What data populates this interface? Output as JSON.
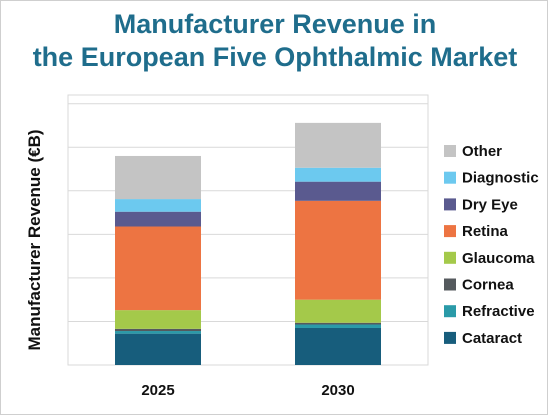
{
  "chart_data": {
    "type": "bar",
    "stacked": true,
    "title_lines": [
      "Manufacturer Revenue in",
      "the European Five Ophthalmic Market"
    ],
    "xlabel": "",
    "ylabel": "Manufacturer Revenue (€B)",
    "categories": [
      "2025",
      "2030"
    ],
    "ylim": [
      0,
      6.2
    ],
    "y_tick_labels_shown": false,
    "grid": true,
    "legend_position": "right",
    "series": [
      {
        "name": "Cataract",
        "color": "#175d7c",
        "values": [
          0.72,
          0.85
        ]
      },
      {
        "name": "Refractive",
        "color": "#2a9aa8",
        "values": [
          0.06,
          0.08
        ]
      },
      {
        "name": "Cornea",
        "color": "#555a5e",
        "values": [
          0.05,
          0.04
        ]
      },
      {
        "name": "Glaucoma",
        "color": "#a4c94a",
        "values": [
          0.43,
          0.53
        ]
      },
      {
        "name": "Retina",
        "color": "#ed7442",
        "values": [
          1.92,
          2.27
        ]
      },
      {
        "name": "Dry Eye",
        "color": "#5a5a8f",
        "values": [
          0.34,
          0.44
        ]
      },
      {
        "name": "Diagnostic",
        "color": "#6cc9ef",
        "values": [
          0.29,
          0.32
        ]
      },
      {
        "name": "Other",
        "color": "#c4c4c4",
        "values": [
          0.99,
          1.03
        ]
      }
    ]
  }
}
